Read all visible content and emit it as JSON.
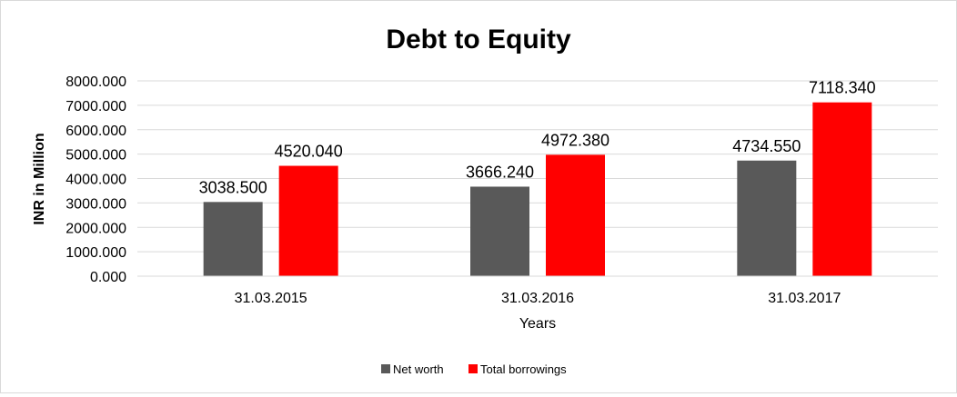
{
  "chart_data": {
    "type": "bar",
    "title": "Debt to Equity",
    "xlabel": "Years",
    "ylabel": "INR in Million",
    "categories": [
      "31.03.2015",
      "31.03.2016",
      "31.03.2017"
    ],
    "series": [
      {
        "name": "Net worth",
        "color": "#595959",
        "values": [
          3038.5,
          3666.24,
          4734.55
        ],
        "labels": [
          "3038.500",
          "3666.240",
          "4734.550"
        ]
      },
      {
        "name": "Total borrowings",
        "color": "#ff0000",
        "values": [
          4520.04,
          4972.38,
          7118.34
        ],
        "labels": [
          "4520.040",
          "4972.380",
          "7118.340"
        ]
      }
    ],
    "ylim": [
      0,
      8000
    ],
    "yticks": [
      0,
      1000,
      2000,
      3000,
      4000,
      5000,
      6000,
      7000,
      8000
    ],
    "ytick_labels": [
      "0.000",
      "1000.000",
      "2000.000",
      "3000.000",
      "4000.000",
      "5000.000",
      "6000.000",
      "7000.000",
      "8000.000"
    ],
    "grid": true,
    "legend_position": "bottom"
  }
}
